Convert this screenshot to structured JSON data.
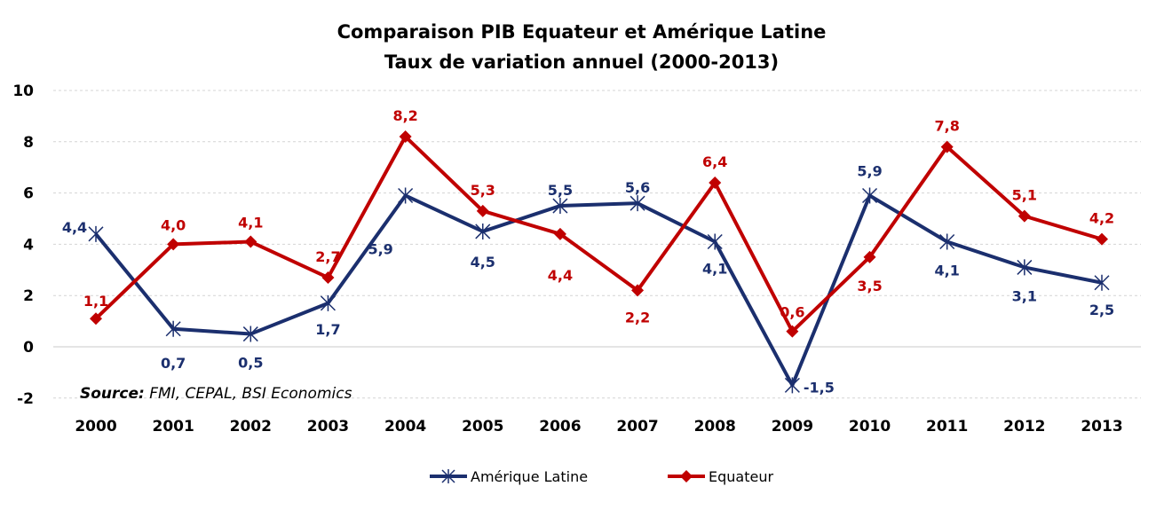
{
  "chart_data": {
    "type": "line",
    "title": "Comparaison PIB Equateur et Amérique Latine",
    "subtitle": "Taux de variation annuel (2000-2013)",
    "xlabel": "",
    "ylabel": "",
    "ylim": [
      -2,
      10
    ],
    "yticks": [
      "10",
      "8",
      "6",
      "4",
      "2",
      "0",
      "-2"
    ],
    "ytick_values": [
      10,
      8,
      6,
      4,
      2,
      0,
      -2
    ],
    "categories": [
      "2000",
      "2001",
      "2002",
      "2003",
      "2004",
      "2005",
      "2006",
      "2007",
      "2008",
      "2009",
      "2010",
      "2011",
      "2012",
      "2013"
    ],
    "grid": true,
    "legend_position": "bottom",
    "series": [
      {
        "name": "Amérique Latine",
        "color": "#1B2F6E",
        "marker": "star",
        "values": [
          4.4,
          0.7,
          0.5,
          1.7,
          5.9,
          4.5,
          5.5,
          5.6,
          4.1,
          -1.5,
          5.9,
          4.1,
          3.1,
          2.5
        ],
        "labels": [
          "4,4",
          "0,7",
          "0,5",
          "1,7",
          "5,9",
          "4,5",
          "5,5",
          "5,6",
          "4,1",
          "-1,5",
          "5,9",
          "4,1",
          "3,1",
          "2,5"
        ]
      },
      {
        "name": "Equateur",
        "color": "#C00000",
        "marker": "diamond",
        "values": [
          1.1,
          4.0,
          4.1,
          2.7,
          8.2,
          5.3,
          4.4,
          2.2,
          6.4,
          0.6,
          3.5,
          7.8,
          5.1,
          4.2
        ],
        "labels": [
          "1,1",
          "4,0",
          "4,1",
          "2,7",
          "8,2",
          "5,3",
          "4,4",
          "2,2",
          "6,4",
          "0,6",
          "3,5",
          "7,8",
          "5,1",
          "4,2"
        ]
      }
    ],
    "annotation": {
      "bold": "Source:",
      "text": " FMI, CEPAL, BSI Economics"
    }
  }
}
